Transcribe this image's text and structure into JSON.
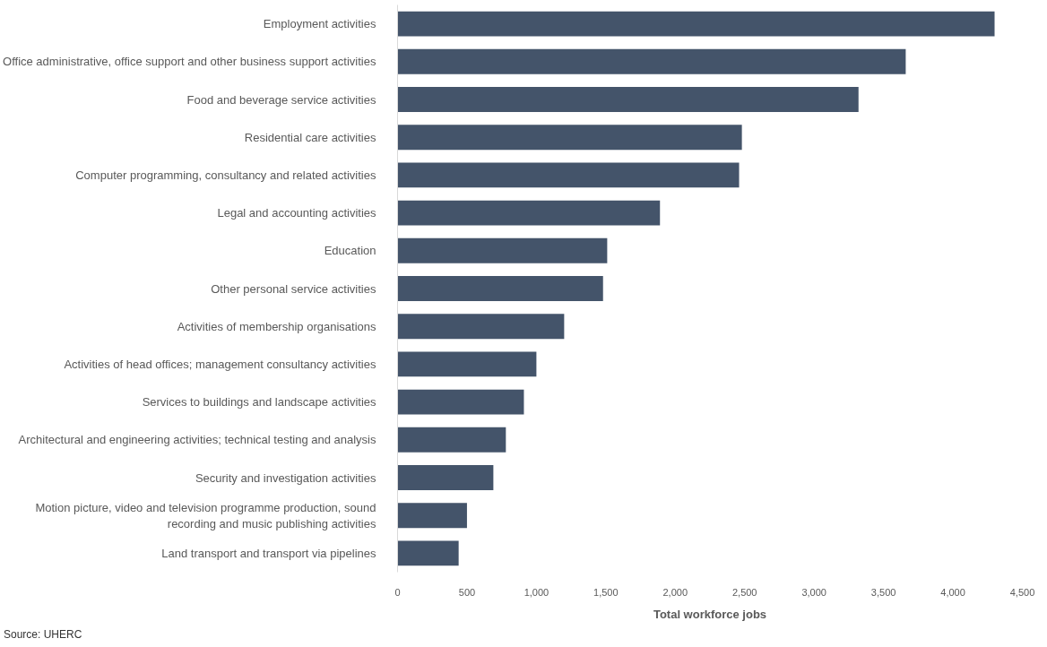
{
  "chart_data": {
    "type": "bar",
    "orientation": "horizontal",
    "xlabel": "Total workforce jobs",
    "categories": [
      "Employment activities",
      "Office administrative, office support and other business support activities",
      "Food and beverage service activities",
      "Residential care activities",
      "Computer programming, consultancy and related activities",
      "Legal and accounting activities",
      "Education",
      "Other personal service activities",
      "Activities of membership organisations",
      "Activities of head offices; management consultancy activities",
      "Services to buildings and landscape activities",
      "Architectural and engineering activities; technical testing and analysis",
      "Security and investigation activities",
      "Motion picture, video and television programme production, sound\nrecording and music publishing activities",
      "Land transport and transport via pipelines"
    ],
    "values": [
      4300,
      3660,
      3320,
      2480,
      2460,
      1890,
      1510,
      1480,
      1200,
      1000,
      910,
      780,
      690,
      500,
      440
    ],
    "color": "#44546a",
    "xlim": [
      0,
      4500
    ],
    "xticks": [
      0,
      {
        "value": 500,
        "label": "500"
      },
      {
        "value": 1000,
        "label": "1,000"
      },
      {
        "value": 1500,
        "label": "1,500"
      },
      {
        "value": 2000,
        "label": "2,000"
      },
      {
        "value": 2500,
        "label": "2,500"
      },
      {
        "value": 3000,
        "label": "3,000"
      },
      {
        "value": 3500,
        "label": "3,500"
      },
      {
        "value": 4000,
        "label": "4,000"
      },
      {
        "value": 4500,
        "label": "4,500"
      }
    ],
    "grid": false,
    "annotations": [
      "Source: UHERC"
    ]
  }
}
